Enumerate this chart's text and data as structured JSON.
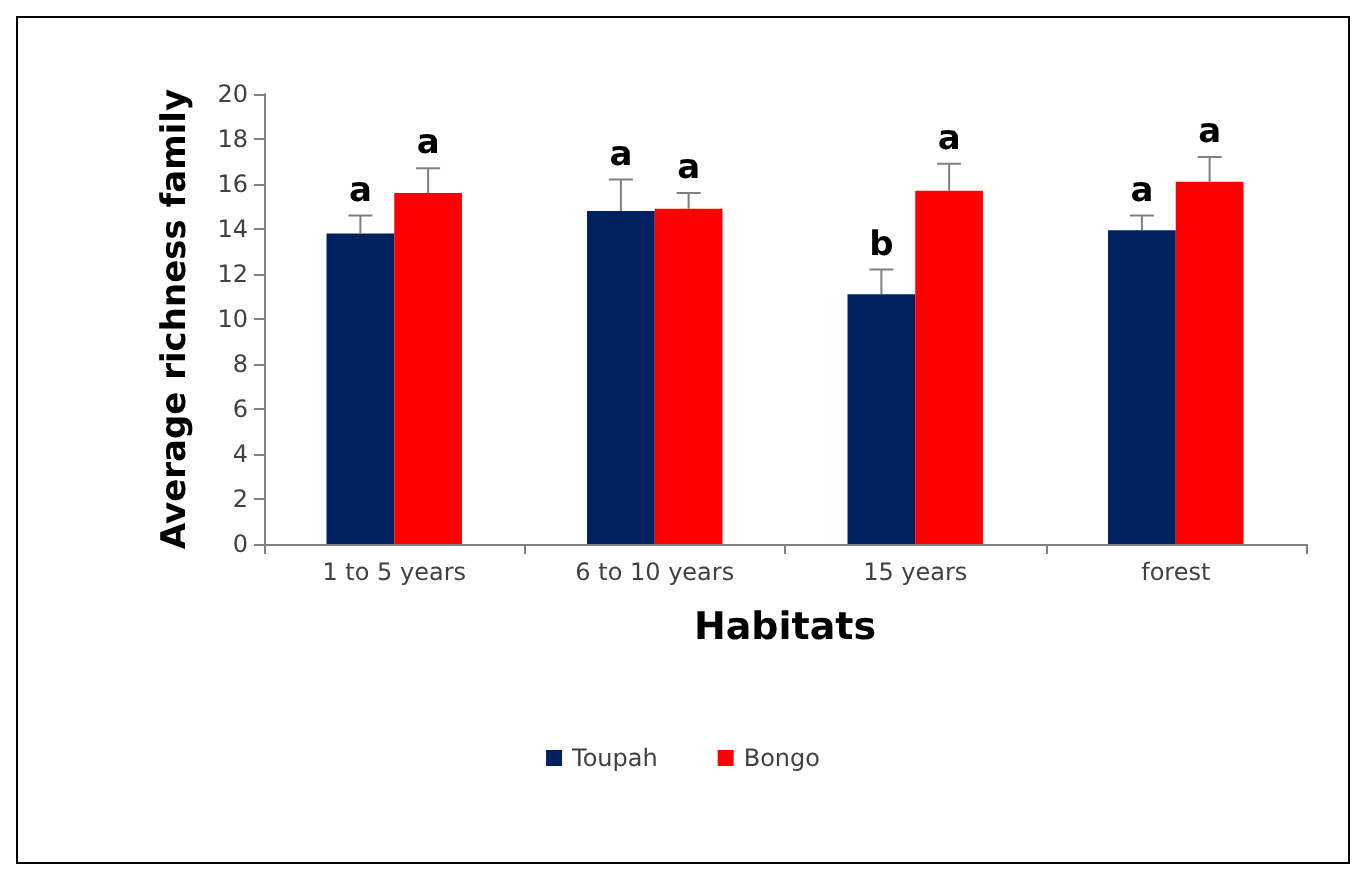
{
  "chart_data": {
    "type": "bar",
    "xlabel": "Habitats",
    "ylabel": "Average richness family",
    "categories": [
      "1 to 5 years",
      "6 to 10 years",
      "15 years",
      "forest"
    ],
    "series": [
      {
        "name": "Toupah",
        "color": "#002060",
        "values": [
          13.8,
          14.8,
          11.1,
          13.95
        ],
        "errors": [
          [
            13.8,
            14.6
          ],
          [
            14.8,
            16.2
          ],
          [
            11.1,
            12.2
          ],
          [
            13.95,
            14.6
          ]
        ],
        "value_labels": [
          "a",
          "a",
          "b",
          "a"
        ]
      },
      {
        "name": "Bongo",
        "color": "#ff0000",
        "values": [
          15.6,
          14.9,
          15.7,
          16.1
        ],
        "errors": [
          [
            15.6,
            16.7
          ],
          [
            14.9,
            15.6
          ],
          [
            15.7,
            16.9
          ],
          [
            16.1,
            17.2
          ]
        ],
        "value_labels": [
          "a",
          "a",
          "a",
          "a"
        ]
      }
    ],
    "ylim": [
      0,
      20
    ],
    "yticks": [
      0,
      2,
      4,
      6,
      8,
      10,
      12,
      14,
      16,
      18,
      20
    ],
    "grid": false,
    "legend": "bottom"
  }
}
